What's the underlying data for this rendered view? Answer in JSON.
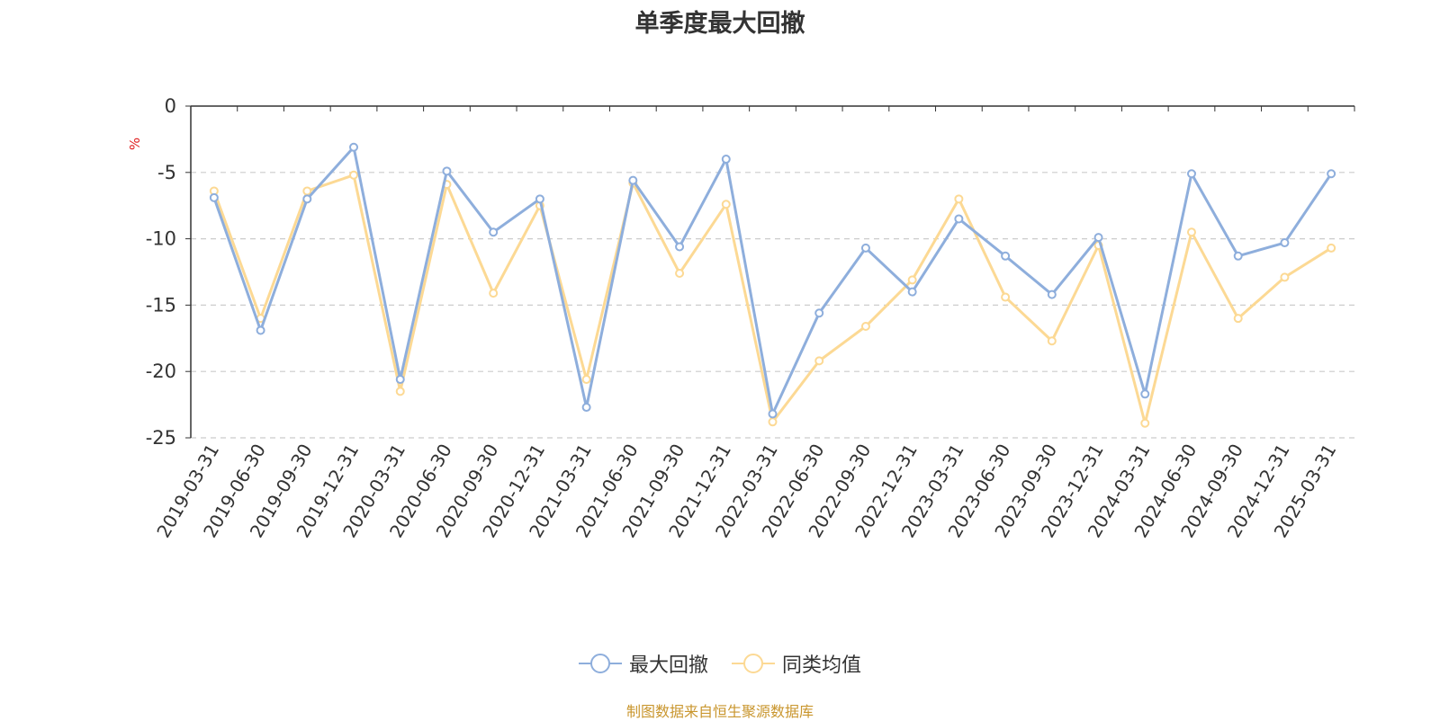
{
  "chart_data": {
    "type": "line",
    "title": "单季度最大回撤",
    "ylabel": "%",
    "ylim": [
      -25,
      0
    ],
    "yticks": [
      0,
      -5,
      -10,
      -15,
      -20,
      -25
    ],
    "grid": true,
    "legend_position": "bottom",
    "categories": [
      "2019-03-31",
      "2019-06-30",
      "2019-09-30",
      "2019-12-31",
      "2020-03-31",
      "2020-06-30",
      "2020-09-30",
      "2020-12-31",
      "2021-03-31",
      "2021-06-30",
      "2021-09-30",
      "2021-12-31",
      "2022-03-31",
      "2022-06-30",
      "2022-09-30",
      "2022-12-31",
      "2023-03-31",
      "2023-06-30",
      "2023-09-30",
      "2023-12-31",
      "2024-03-31",
      "2024-06-30",
      "2024-09-30",
      "2024-12-31",
      "2025-03-31"
    ],
    "series": [
      {
        "name": "最大回撤",
        "color": "#8eaedc",
        "values": [
          -6.9,
          -16.9,
          -7.0,
          -3.1,
          -20.6,
          -4.9,
          -9.5,
          -7.0,
          -22.7,
          -5.6,
          -10.6,
          -4.0,
          -23.2,
          -15.6,
          -10.7,
          -14.0,
          -8.5,
          -11.3,
          -14.2,
          -9.9,
          -21.7,
          -5.1,
          -11.3,
          -10.3,
          -5.1
        ]
      },
      {
        "name": "同类均值",
        "color": "#fcd994",
        "values": [
          -6.4,
          -16.0,
          -6.4,
          -5.2,
          -21.5,
          -5.9,
          -14.1,
          -7.5,
          -20.6,
          -5.8,
          -12.6,
          -7.4,
          -23.8,
          -19.2,
          -16.6,
          -13.1,
          -7.0,
          -14.4,
          -17.7,
          -10.5,
          -23.9,
          -9.5,
          -16.0,
          -12.9,
          -10.7
        ]
      }
    ]
  },
  "source_note": "制图数据来自恒生聚源数据库"
}
